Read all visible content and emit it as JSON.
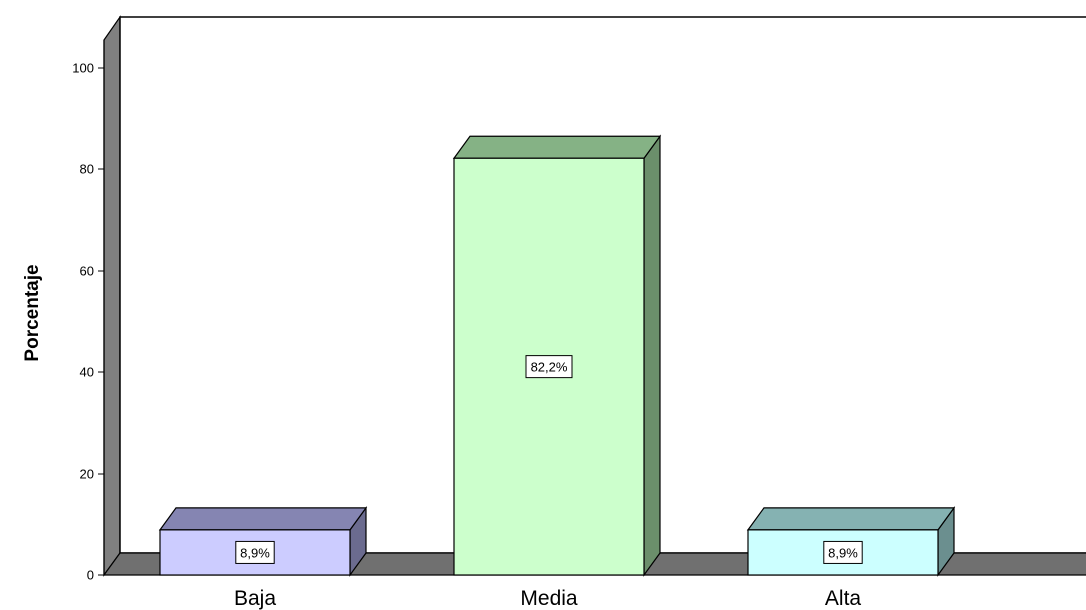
{
  "chart_data": {
    "type": "bar",
    "title": "",
    "xlabel": "",
    "ylabel": "Porcentaje",
    "ylim": [
      0,
      100
    ],
    "yticks": [
      "0",
      "20",
      "40",
      "60",
      "80",
      "100"
    ],
    "categories": [
      "Baja",
      "Media",
      "Alta"
    ],
    "values": [
      8.9,
      82.2,
      8.9
    ],
    "data_labels": [
      "8,9%",
      "82,2%",
      "8,9%"
    ],
    "grid": false,
    "style": "3d",
    "colors": {
      "front": [
        "#ccccff",
        "#ccffcc",
        "#ccffff"
      ],
      "side": [
        "#6b6b8f",
        "#6b8f6b",
        "#6b8f8f"
      ],
      "top": [
        "#8585b2",
        "#85b285",
        "#85b2b2"
      ]
    }
  }
}
